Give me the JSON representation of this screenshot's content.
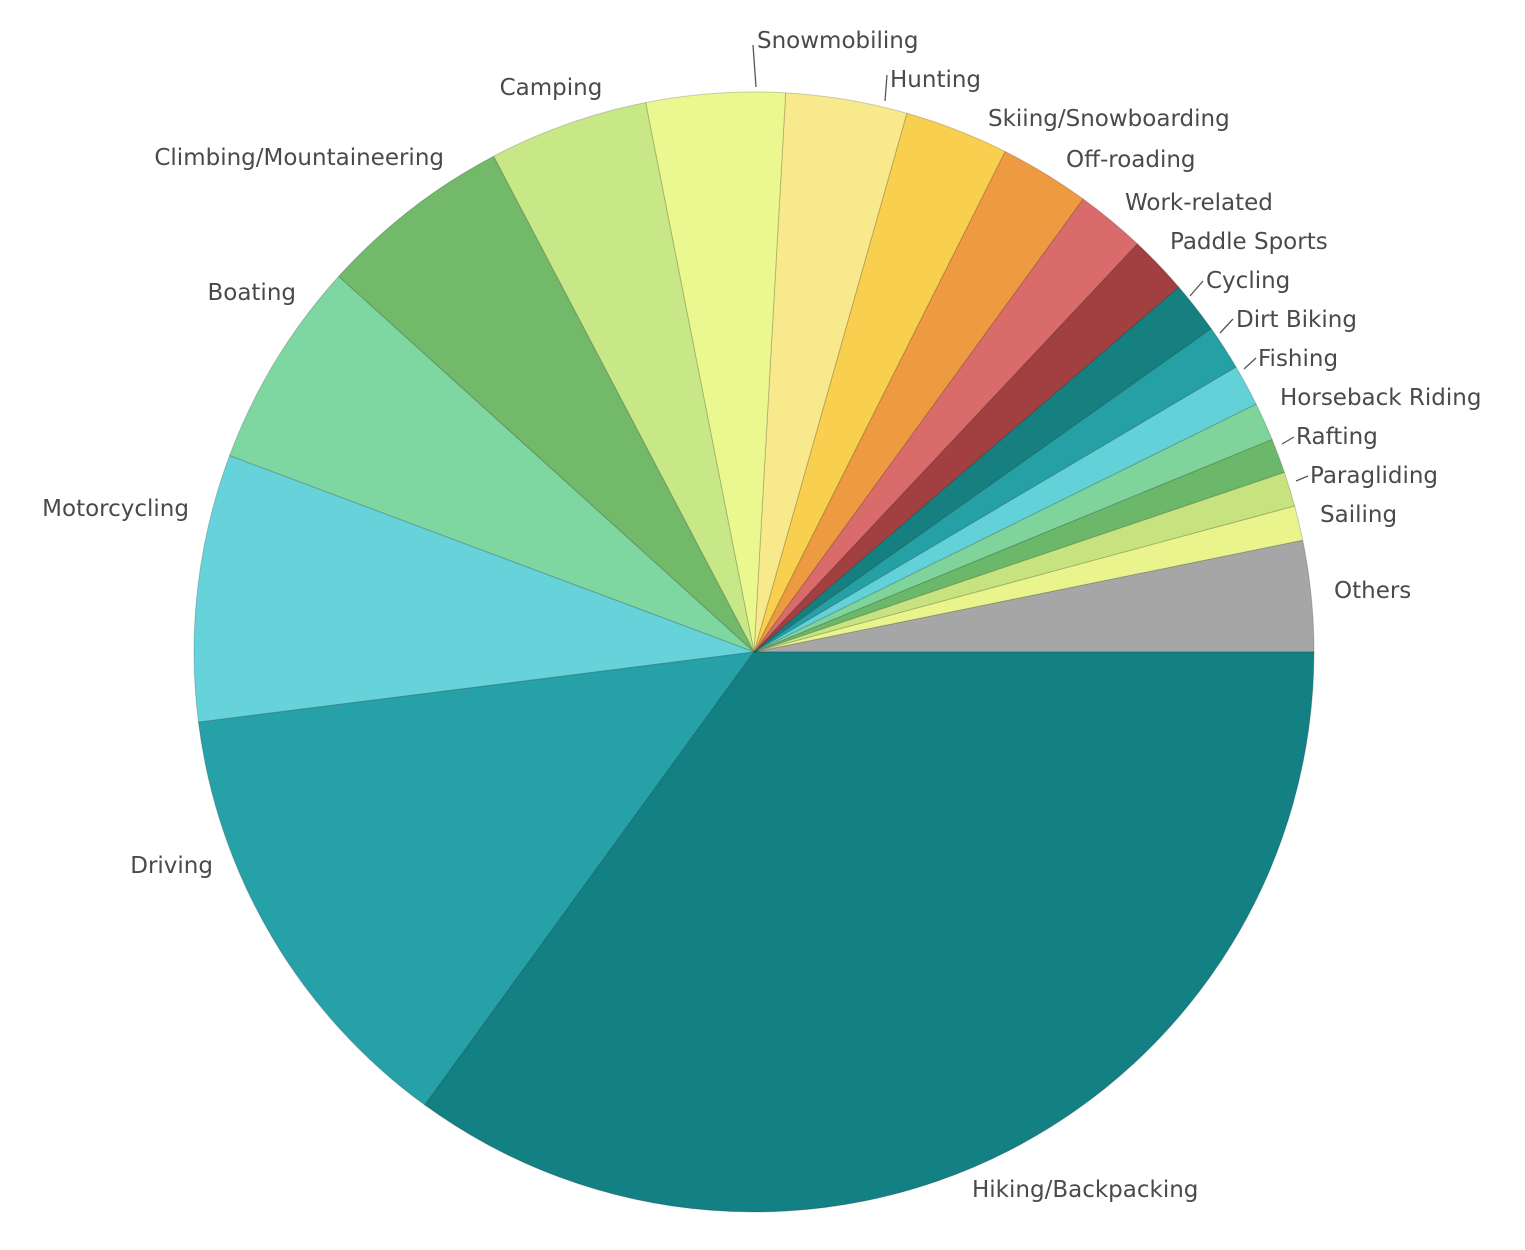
{
  "chart_data": {
    "type": "pie",
    "start": "3 o'clock, counter-clockwise",
    "slices": [
      {
        "label": "Others",
        "value": 3.2,
        "color": "#a6a6a6"
      },
      {
        "label": "Sailing",
        "value": 1.0,
        "color": "#e9f58c"
      },
      {
        "label": "Paragliding",
        "value": 1.0,
        "color": "#c6e37f"
      },
      {
        "label": "Rafting",
        "value": 1.0,
        "color": "#6cb86a"
      },
      {
        "label": "Horseback Riding",
        "value": 1.1,
        "color": "#7fd49c"
      },
      {
        "label": "Fishing",
        "value": 1.2,
        "color": "#62d1d8"
      },
      {
        "label": "Dirt Biking",
        "value": 1.3,
        "color": "#25a1a6"
      },
      {
        "label": "Cycling",
        "value": 1.5,
        "color": "#15807f"
      },
      {
        "label": "Paddle Sports",
        "value": 1.7,
        "color": "#a23f40"
      },
      {
        "label": "Work-related",
        "value": 2.0,
        "color": "#d96b6b"
      },
      {
        "label": "Off-roading",
        "value": 2.6,
        "color": "#ed9a40"
      },
      {
        "label": "Skiing/Snowboarding",
        "value": 3.0,
        "color": "#f8cf4e"
      },
      {
        "label": "Hunting",
        "value": 3.5,
        "color": "#f8e98c"
      },
      {
        "label": "Snowmobiling",
        "value": 4.0,
        "color": "#eaf88f"
      },
      {
        "label": "Camping",
        "value": 4.6,
        "color": "#c8e888"
      },
      {
        "label": "Climbing/Mountaineering",
        "value": 5.6,
        "color": "#72b96a"
      },
      {
        "label": "Boating",
        "value": 6.0,
        "color": "#7ed6a0"
      },
      {
        "label": "Motorcycling",
        "value": 7.7,
        "color": "#66d2da"
      },
      {
        "label": "Driving",
        "value": 13.0,
        "color": "#26a1a7"
      },
      {
        "label": "Hiking/Backpacking",
        "value": 35.0,
        "color": "#138083"
      }
    ]
  }
}
